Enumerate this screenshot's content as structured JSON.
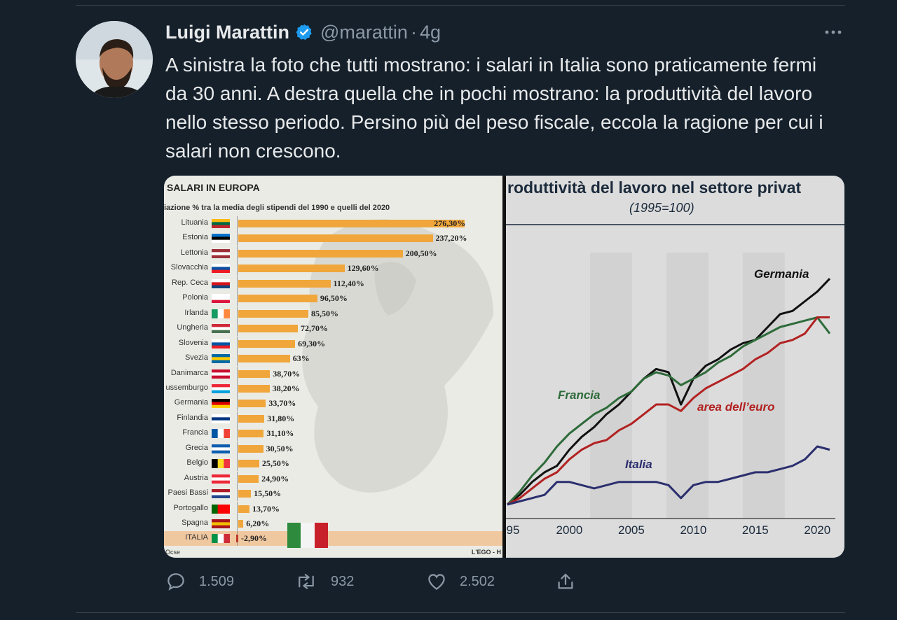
{
  "tweet": {
    "author_name": "Luigi Marattin",
    "handle": "@marattin",
    "separator": "·",
    "time": "4g",
    "text": "A sinistra la foto che tutti mostrano: i salari in Italia sono praticamente fermi da 30 anni. A destra quella che in pochi mostrano: la produttività del lavoro nello stesso periodo. Persino più del peso fiscale, eccola la ragione per cui i salari non crescono.",
    "icons": {
      "verified": "verified-badge-icon",
      "more": "more-options-icon"
    }
  },
  "actions": {
    "replies": "1.509",
    "retweets": "932",
    "likes": "2.502",
    "icons": [
      "reply-icon",
      "retweet-icon",
      "like-icon",
      "share-icon"
    ]
  },
  "colors": {
    "background": "#15202b",
    "text": "#e7e9ea",
    "muted": "#8b98a5",
    "verified": "#1d9bf0",
    "bar": "#f0a63b"
  },
  "media_left": {
    "title": "SALARI IN EUROPA",
    "subtitle": "iazione % tra la media degli stipendi del 1990 e quelli del 2020",
    "source": "Ocse",
    "brand": "L'EGO - H",
    "chart_data": {
      "type": "bar",
      "orientation": "horizontal",
      "categories": [
        "Lituania",
        "Estonia",
        "Lettonia",
        "Slovacchia",
        "Rep. Ceca",
        "Polonia",
        "Irlanda",
        "Ungheria",
        "Slovenia",
        "Svezia",
        "Danimarca",
        "ussemburgo",
        "Germania",
        "Finlandia",
        "Francia",
        "Grecia",
        "Belgio",
        "Austria",
        "Paesi Bassi",
        "Portogallo",
        "Spagna",
        "ITALIA"
      ],
      "values": [
        276.3,
        237.2,
        200.5,
        129.6,
        112.4,
        96.5,
        85.5,
        72.7,
        69.3,
        63,
        38.7,
        38.2,
        33.7,
        31.8,
        31.1,
        30.5,
        25.5,
        24.9,
        15.5,
        13.7,
        6.2,
        -2.9
      ],
      "labels": [
        "276,30%",
        "237,20%",
        "200,50%",
        "129,60%",
        "112,40%",
        "96,50%",
        "85,50%",
        "72,70%",
        "69,30%",
        "63%",
        "38,70%",
        "38,20%",
        "33,70%",
        "31,80%",
        "31,10%",
        "30,50%",
        "25,50%",
        "24,90%",
        "15,50%",
        "13,70%",
        "6,20%",
        "-2,90%"
      ]
    }
  },
  "media_right": {
    "title": "roduttività del lavoro nel settore privat",
    "subtitle": "(1995=100)",
    "chart_data": {
      "type": "line",
      "x_tick_labels": [
        "95",
        "2000",
        "2005",
        "2010",
        "2015",
        "2020"
      ],
      "series": [
        {
          "name": "Germania",
          "color": "#111111",
          "x": [
            1995,
            1996,
            1997,
            1998,
            1999,
            2000,
            2001,
            2002,
            2003,
            2004,
            2005,
            2006,
            2007,
            2008,
            2009,
            2010,
            2011,
            2012,
            2013,
            2014,
            2015,
            2016,
            2017,
            2018,
            2019,
            2020,
            2021
          ],
          "values": [
            100,
            103,
            107,
            110,
            112,
            117,
            121,
            124,
            128,
            131,
            135,
            139,
            142,
            141,
            131,
            139,
            143,
            145,
            148,
            150,
            151,
            155,
            159,
            160,
            163,
            166,
            170
          ]
        },
        {
          "name": "Francia",
          "color": "#2e6b3a",
          "x": [
            1995,
            1996,
            1997,
            1998,
            1999,
            2000,
            2001,
            2002,
            2003,
            2004,
            2005,
            2006,
            2007,
            2008,
            2009,
            2010,
            2011,
            2012,
            2013,
            2014,
            2015,
            2016,
            2017,
            2018,
            2019,
            2020,
            2021
          ],
          "values": [
            100,
            104,
            109,
            113,
            118,
            122,
            125,
            128,
            130,
            133,
            135,
            139,
            141,
            140,
            137,
            139,
            141,
            144,
            146,
            149,
            151,
            153,
            155,
            156,
            157,
            158,
            153
          ]
        },
        {
          "name": "area dell’euro",
          "color": "#b22222",
          "x": [
            1995,
            1996,
            1997,
            1998,
            1999,
            2000,
            2001,
            2002,
            2003,
            2004,
            2005,
            2006,
            2007,
            2008,
            2009,
            2010,
            2011,
            2012,
            2013,
            2014,
            2015,
            2016,
            2017,
            2018,
            2019,
            2020,
            2021
          ],
          "values": [
            100,
            102,
            105,
            108,
            110,
            114,
            117,
            119,
            120,
            123,
            125,
            128,
            131,
            131,
            129,
            133,
            136,
            138,
            140,
            142,
            145,
            147,
            150,
            151,
            153,
            158,
            158
          ]
        },
        {
          "name": "Italia",
          "color": "#2b2f6e",
          "x": [
            1995,
            1996,
            1997,
            1998,
            1999,
            2000,
            2001,
            2002,
            2003,
            2004,
            2005,
            2006,
            2007,
            2008,
            2009,
            2010,
            2011,
            2012,
            2013,
            2014,
            2015,
            2016,
            2017,
            2018,
            2019,
            2020,
            2021
          ],
          "values": [
            100,
            101,
            102,
            103,
            107,
            107,
            106,
            105,
            106,
            107,
            107,
            107,
            107,
            106,
            102,
            106,
            107,
            107,
            108,
            109,
            110,
            110,
            111,
            112,
            114,
            118,
            117
          ]
        }
      ]
    }
  }
}
